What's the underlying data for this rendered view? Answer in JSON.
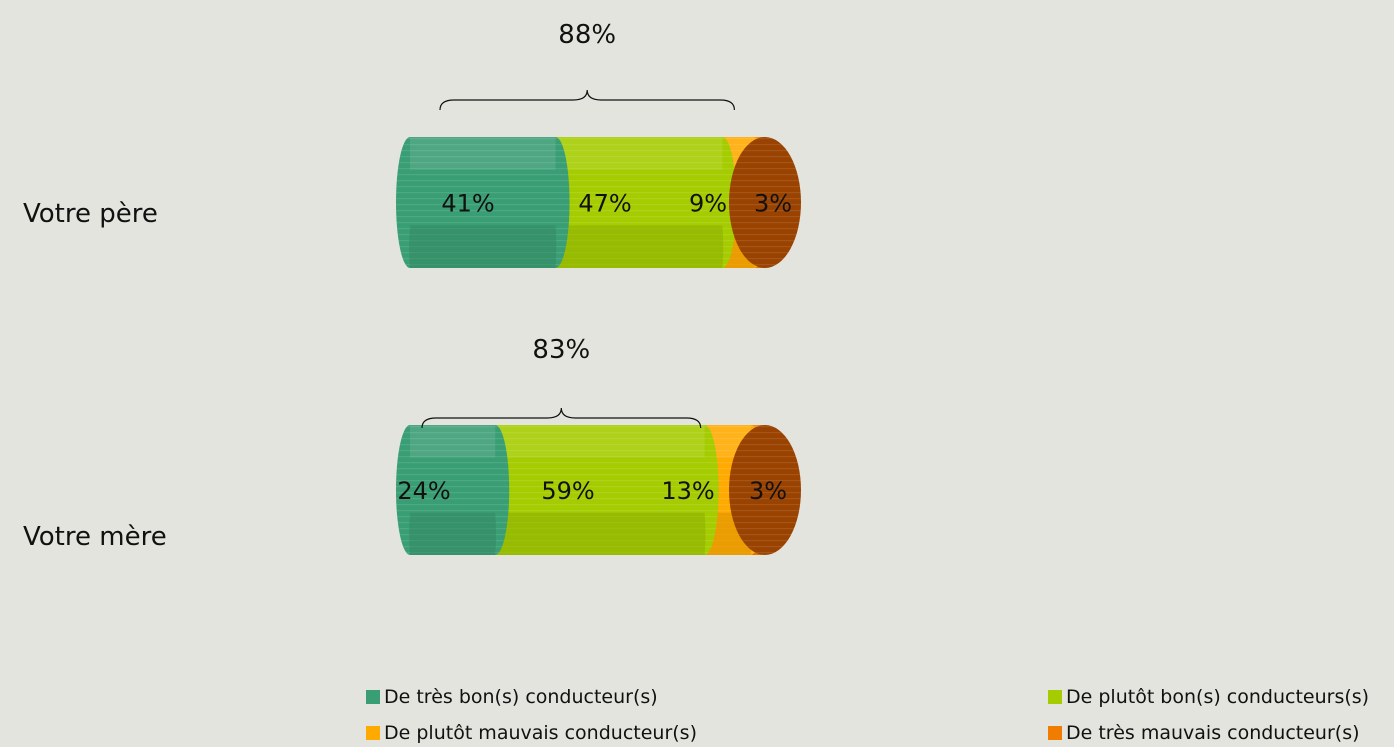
{
  "chart_data": {
    "type": "bar",
    "orientation": "horizontal",
    "stacked": true,
    "categories": [
      "Votre père",
      "Votre mère"
    ],
    "series": [
      {
        "name": "De très bon(s) conducteur(s)",
        "values": [
          41,
          24
        ],
        "labels": [
          "41%",
          "24%"
        ],
        "color": "#3a9e74"
      },
      {
        "name": "De plutôt bon(s) conducteurs(s)",
        "values": [
          47,
          59
        ],
        "labels": [
          "47%",
          "59%"
        ],
        "color": "#a5cc00"
      },
      {
        "name": "De plutôt mauvais conducteur(s)",
        "values": [
          9,
          13
        ],
        "labels": [
          "9%",
          "13%"
        ],
        "color": "#ffaa00"
      },
      {
        "name": "De très mauvais conducteur(s)",
        "values": [
          3,
          3
        ],
        "labels": [
          "3%",
          "3%"
        ],
        "color": "#f07d00"
      }
    ],
    "brackets": [
      {
        "category": "Votre père",
        "label": "88%",
        "value": 88
      },
      {
        "category": "Votre mère",
        "label": "83%",
        "value": 83
      }
    ],
    "end_cap_color": "#9a4200",
    "legend_position": "bottom",
    "grid": false
  }
}
